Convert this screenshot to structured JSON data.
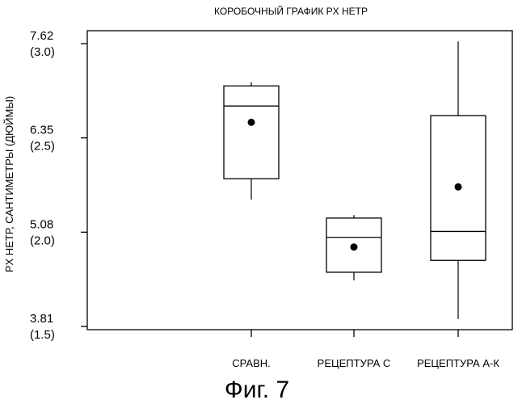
{
  "chart_data": {
    "type": "box",
    "title": "КОРОБОЧНЫЙ ГРАФИК PX НЕТР",
    "ylabel": "PX НЕТР, САНТИМЕТРЫ (ДЮЙМЫ)",
    "ylim": [
      3.81,
      7.62
    ],
    "yticks": [
      {
        "value": 7.62,
        "label": "7.62",
        "sublabel": "(3.0)"
      },
      {
        "value": 6.35,
        "label": "6.35",
        "sublabel": "(2.5)"
      },
      {
        "value": 5.08,
        "label": "5.08",
        "sublabel": "(2.0)"
      },
      {
        "value": 3.81,
        "label": "3.81",
        "sublabel": "(1.5)"
      }
    ],
    "categories": [
      "СРАВН.",
      "РЕЦЕПТУРА С",
      "РЕЦЕПТУРА А-К"
    ],
    "boxes": [
      {
        "category": "СРАВН.",
        "whisker_low": 5.52,
        "q1": 5.8,
        "median": 6.78,
        "q3": 7.05,
        "whisker_high": 7.1,
        "mean": 6.56
      },
      {
        "category": "РЕЦЕПТУРА С",
        "whisker_low": 4.43,
        "q1": 4.54,
        "median": 5.01,
        "q3": 5.27,
        "whisker_high": 5.31,
        "mean": 4.88
      },
      {
        "category": "РЕЦЕПТУРА А-К",
        "whisker_low": 3.91,
        "q1": 4.7,
        "median": 5.09,
        "q3": 6.65,
        "whisker_high": 7.65,
        "mean": 5.69
      }
    ]
  },
  "caption": "Фиг. 7"
}
